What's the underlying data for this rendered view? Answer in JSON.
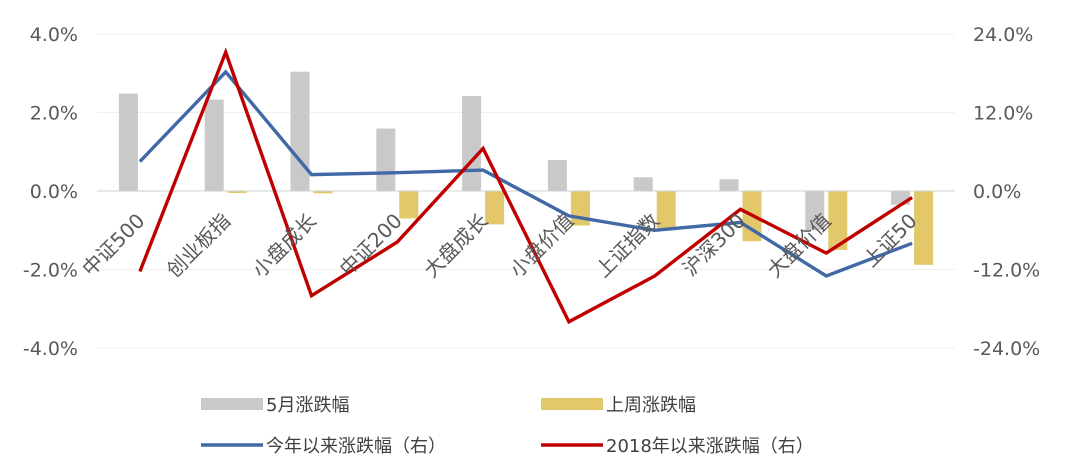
{
  "chart_data": {
    "type": "bar",
    "categories": [
      "中证500",
      "创业板指",
      "小盘成长",
      "中证200",
      "大盘成长",
      "小盘价值",
      "上证指数",
      "沪深300",
      "大盘价值",
      "上证50"
    ],
    "series": [
      {
        "name": "5月涨跌幅",
        "type": "bar",
        "axis": "left",
        "color": "#c9c9c9",
        "values": [
          2.48,
          2.33,
          3.04,
          1.59,
          2.42,
          0.79,
          0.35,
          0.3,
          -1.0,
          -0.35
        ]
      },
      {
        "name": "上周涨跌幅",
        "type": "bar",
        "axis": "left",
        "color": "#e2c86a",
        "values": [
          0.0,
          -0.05,
          -0.06,
          -0.7,
          -0.85,
          -0.88,
          -0.95,
          -1.28,
          -1.5,
          -1.88
        ]
      },
      {
        "name": "今年以来涨跌幅（右）",
        "type": "line",
        "axis": "right",
        "color": "#4169a5",
        "values": [
          4.5,
          18.2,
          2.5,
          2.8,
          3.2,
          -3.8,
          -6.0,
          -4.8,
          -13.0,
          -8.0
        ]
      },
      {
        "name": "2018年以来涨跌幅（右）",
        "type": "line",
        "axis": "right",
        "color": "#c00000",
        "values": [
          -12.3,
          21.2,
          -16.0,
          -7.8,
          6.5,
          -20.0,
          -13.0,
          -2.8,
          -9.5,
          -1.0
        ]
      }
    ],
    "y_left": {
      "range": [
        -4,
        4
      ],
      "ticks": [
        -4,
        -2,
        0,
        2,
        4
      ],
      "tick_labels": [
        "-4.0%",
        "-2.0%",
        "0.0%",
        "2.0%",
        "4.0%"
      ]
    },
    "y_right": {
      "range": [
        -24,
        24
      ],
      "ticks": [
        -24,
        -12,
        0,
        12,
        24
      ],
      "tick_labels": [
        "-24.0%",
        "-12.0%",
        "0.0%",
        "12.0%",
        "24.0%"
      ]
    },
    "grid": true,
    "legend_position": "bottom"
  }
}
